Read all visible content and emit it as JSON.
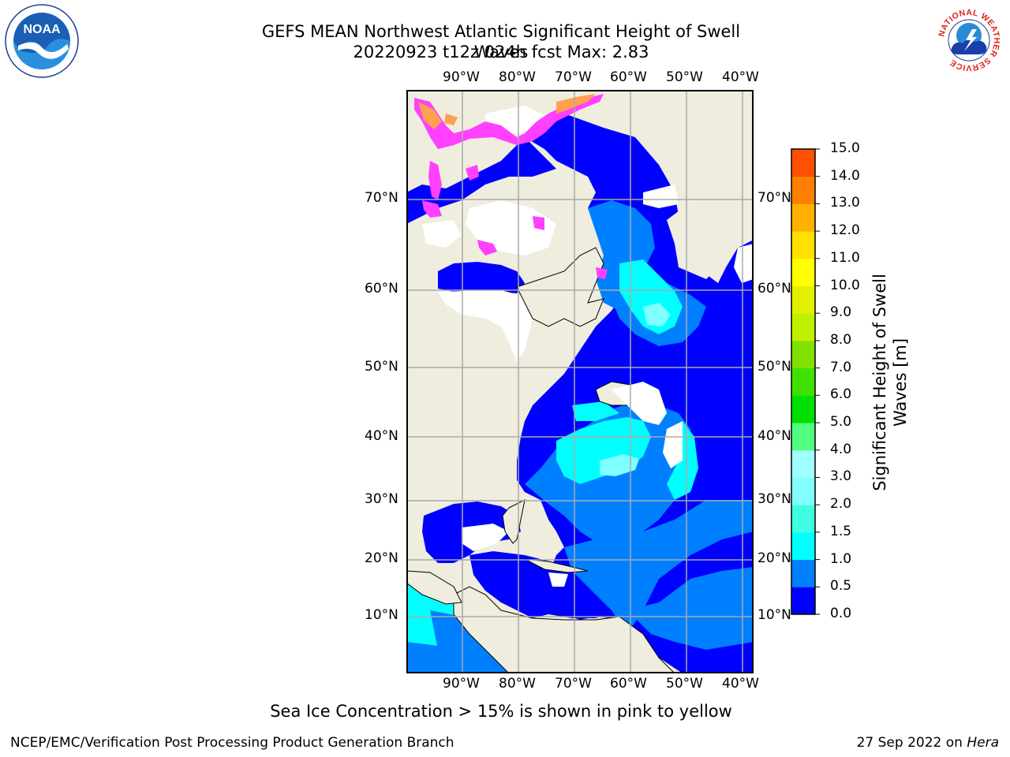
{
  "title_line1": "GEFS MEAN Northwest Atlantic Significant Height of Swell Waves",
  "title_line2": "20220923 t12z 024h fcst   Max: 2.83",
  "lon_ticks": [
    "90°W",
    "80°W",
    "70°W",
    "60°W",
    "50°W",
    "40°W"
  ],
  "lat_ticks": [
    "70°N",
    "60°N",
    "50°N",
    "40°N",
    "30°N",
    "20°N",
    "10°N"
  ],
  "colorbar": {
    "label_line1": "Significant Height of Swell",
    "label_line2": "Waves [m]",
    "ticks": [
      "0.0",
      "0.5",
      "1.0",
      "1.5",
      "2.0",
      "3.0",
      "4.0",
      "5.0",
      "6.0",
      "7.0",
      "8.0",
      "9.0",
      "10.0",
      "11.0",
      "12.0",
      "13.0",
      "14.0",
      "15.0"
    ],
    "colors": [
      "#0000ff",
      "#0080ff",
      "#00ffff",
      "#40ffe0",
      "#80ffff",
      "#a0ffff",
      "#50ff80",
      "#00e000",
      "#40e000",
      "#80e000",
      "#c0f000",
      "#e0f000",
      "#ffff00",
      "#ffe000",
      "#ffb000",
      "#ff8000",
      "#ff5000",
      "#ff2000",
      "#ff0000"
    ]
  },
  "ice_note": "Sea Ice Concentration > 15% is shown in pink to yellow",
  "footer_left": "NCEP/EMC/Verification Post Processing Product Generation Branch",
  "footer_date": "27 Sep 2022 on",
  "footer_host": "Hera",
  "logos": {
    "noaa_text": "NOAA",
    "nws_text": "NATIONAL WEATHER SERVICE"
  },
  "map_colors": {
    "land": "#efedde",
    "ocean_low": "#0000ff",
    "ocean_mid": "#0080ff",
    "ocean_high": "#00ffff",
    "ocean_peak": "#80ffff",
    "ice_pink": "#ff40ff",
    "ice_orange": "#ffa050"
  }
}
